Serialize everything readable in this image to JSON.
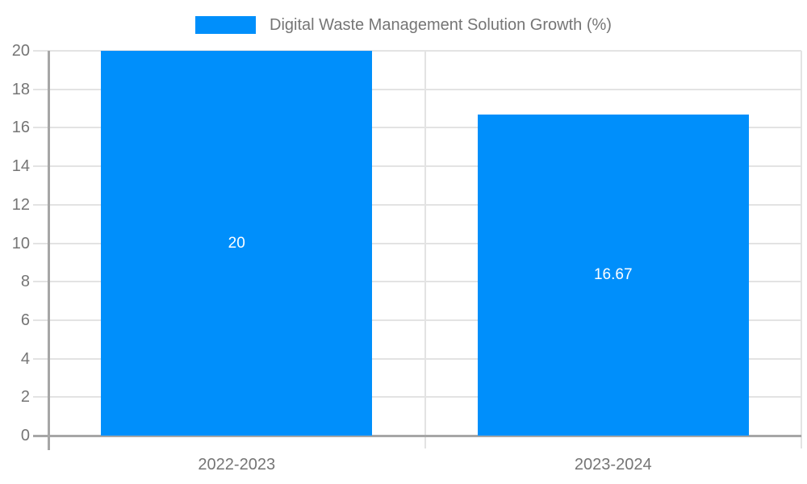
{
  "legend": {
    "label": "Digital Waste Management Solution Growth (%)"
  },
  "chart_data": {
    "type": "bar",
    "title": "Digital Waste Management Solution Growth (%)",
    "categories": [
      "2022-2023",
      "2023-2024"
    ],
    "values": [
      20,
      16.67
    ],
    "value_labels": [
      "20",
      "16.67"
    ],
    "series": [
      {
        "name": "Digital Waste Management Solution Growth (%)",
        "values": [
          20,
          16.67
        ]
      }
    ],
    "yticks": [
      "0",
      "2",
      "4",
      "6",
      "8",
      "10",
      "12",
      "14",
      "16",
      "18",
      "20"
    ],
    "ylim": [
      0,
      20
    ],
    "grid": true,
    "legend_position": "top",
    "colors": {
      "bar": "#008FFB",
      "bar_label": "#ffffff",
      "axis_text": "#757575",
      "grid_line": "#e3e3e3",
      "axis_line": "#a6a6a6",
      "background": "#ffffff"
    }
  }
}
